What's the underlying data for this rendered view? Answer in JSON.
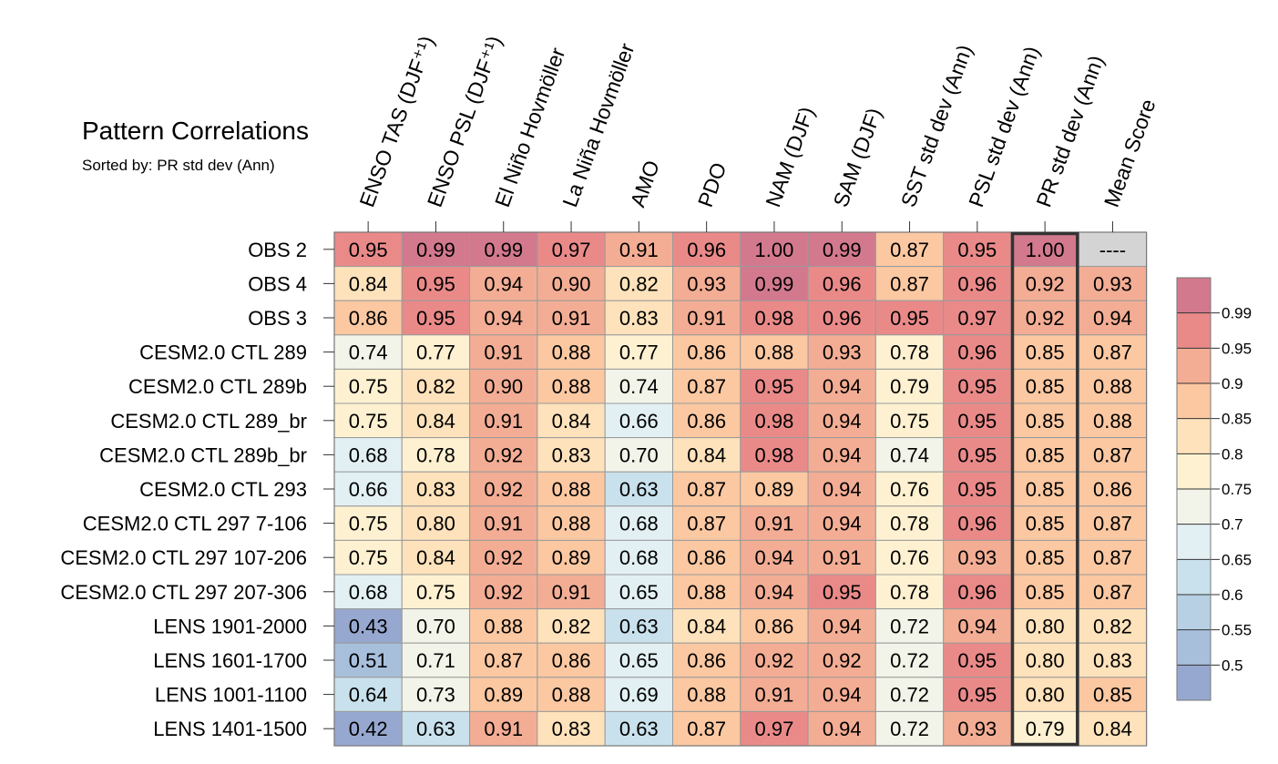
{
  "chart_data": {
    "type": "heatmap",
    "title": "Pattern Correlations",
    "subtitle": "Sorted by: PR std dev (Ann)",
    "columns": [
      "ENSO TAS (DJF⁺¹)",
      "ENSO PSL (DJF⁺¹)",
      "El Niño Hovmöller",
      "La Niña Hovmöller",
      "AMO",
      "PDO",
      "NAM (DJF)",
      "SAM (DJF)",
      "SST std dev (Ann)",
      "PSL std dev (Ann)",
      "PR std dev (Ann)",
      "Mean Score"
    ],
    "rows": [
      "OBS 2",
      "OBS 4",
      "OBS 3",
      "CESM2.0 CTL 289",
      "CESM2.0 CTL 289b",
      "CESM2.0 CTL 289_br",
      "CESM2.0 CTL 289b_br",
      "CESM2.0 CTL 293",
      "CESM2.0 CTL 297 7-106",
      "CESM2.0 CTL 297 107-206",
      "CESM2.0 CTL 297 207-306",
      "LENS 1901-2000",
      "LENS 1601-1700",
      "LENS 1001-1100",
      "LENS 1401-1500"
    ],
    "values": [
      [
        "0.95",
        "0.99",
        "0.99",
        "0.97",
        "0.91",
        "0.96",
        "1.00",
        "0.99",
        "0.87",
        "0.95",
        "1.00",
        "----"
      ],
      [
        "0.84",
        "0.95",
        "0.94",
        "0.90",
        "0.82",
        "0.93",
        "0.99",
        "0.96",
        "0.87",
        "0.96",
        "0.92",
        "0.93"
      ],
      [
        "0.86",
        "0.95",
        "0.94",
        "0.91",
        "0.83",
        "0.91",
        "0.98",
        "0.96",
        "0.95",
        "0.97",
        "0.92",
        "0.94"
      ],
      [
        "0.74",
        "0.77",
        "0.91",
        "0.88",
        "0.77",
        "0.86",
        "0.88",
        "0.93",
        "0.78",
        "0.96",
        "0.85",
        "0.87"
      ],
      [
        "0.75",
        "0.82",
        "0.90",
        "0.88",
        "0.74",
        "0.87",
        "0.95",
        "0.94",
        "0.79",
        "0.95",
        "0.85",
        "0.88"
      ],
      [
        "0.75",
        "0.84",
        "0.91",
        "0.84",
        "0.66",
        "0.86",
        "0.98",
        "0.94",
        "0.75",
        "0.95",
        "0.85",
        "0.88"
      ],
      [
        "0.68",
        "0.78",
        "0.92",
        "0.83",
        "0.70",
        "0.84",
        "0.98",
        "0.94",
        "0.74",
        "0.95",
        "0.85",
        "0.87"
      ],
      [
        "0.66",
        "0.83",
        "0.92",
        "0.88",
        "0.63",
        "0.87",
        "0.89",
        "0.94",
        "0.76",
        "0.95",
        "0.85",
        "0.86"
      ],
      [
        "0.75",
        "0.80",
        "0.91",
        "0.88",
        "0.68",
        "0.87",
        "0.91",
        "0.94",
        "0.78",
        "0.96",
        "0.85",
        "0.87"
      ],
      [
        "0.75",
        "0.84",
        "0.92",
        "0.89",
        "0.68",
        "0.86",
        "0.94",
        "0.91",
        "0.76",
        "0.93",
        "0.85",
        "0.87"
      ],
      [
        "0.68",
        "0.75",
        "0.92",
        "0.91",
        "0.65",
        "0.88",
        "0.94",
        "0.95",
        "0.78",
        "0.96",
        "0.85",
        "0.87"
      ],
      [
        "0.43",
        "0.70",
        "0.88",
        "0.82",
        "0.63",
        "0.84",
        "0.86",
        "0.94",
        "0.72",
        "0.94",
        "0.80",
        "0.82"
      ],
      [
        "0.51",
        "0.71",
        "0.87",
        "0.86",
        "0.65",
        "0.86",
        "0.92",
        "0.92",
        "0.72",
        "0.95",
        "0.80",
        "0.83"
      ],
      [
        "0.64",
        "0.73",
        "0.89",
        "0.88",
        "0.69",
        "0.88",
        "0.91",
        "0.94",
        "0.72",
        "0.95",
        "0.80",
        "0.85"
      ],
      [
        "0.42",
        "0.63",
        "0.91",
        "0.83",
        "0.63",
        "0.87",
        "0.97",
        "0.94",
        "0.72",
        "0.93",
        "0.79",
        "0.84"
      ]
    ],
    "sorted_column": "PR std dev (Ann)",
    "colorbar": {
      "levels": [
        0.5,
        0.55,
        0.6,
        0.65,
        0.7,
        0.75,
        0.8,
        0.85,
        0.9,
        0.95,
        0.99
      ],
      "labels": [
        "0.5",
        "0.55",
        "0.6",
        "0.65",
        "0.7",
        "0.75",
        "0.8",
        "0.85",
        "0.9",
        "0.95",
        "0.99"
      ],
      "colors": [
        "#97a8d0",
        "#a8bfdc",
        "#b8d0e4",
        "#c9e1ec",
        "#e2f0f4",
        "#f3f4e9",
        "#fdf1d1",
        "#fde2bb",
        "#fbc8a2",
        "#f3ad94",
        "#e98a89",
        "#d3798e"
      ]
    },
    "missing_color": "#d4d4d4"
  }
}
